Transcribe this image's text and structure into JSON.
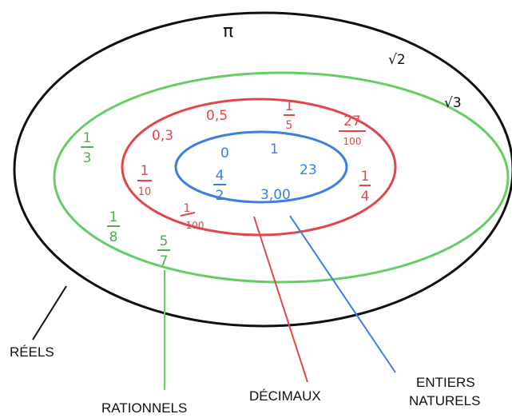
{
  "colors": {
    "reels": "#111111",
    "rationnels": "#66cc66",
    "decimaux": "#e0474c",
    "entiers": "#3b7fe0"
  },
  "labels": {
    "reels": "RÉELS",
    "rationnels": "RATIONNELS",
    "decimaux": "DÉCIMAUX",
    "entiers_line1": "ENTIERS",
    "entiers_line2": "NATURELS"
  },
  "reels": {
    "pi": "π",
    "sqrt2": "√2",
    "sqrt3": "√3"
  },
  "rationnels": {
    "f1": {
      "num": "1",
      "den": "3"
    },
    "f2": {
      "num": "1",
      "den": "8"
    },
    "f3": {
      "num": "5",
      "den": "7"
    }
  },
  "decimaux": {
    "v1": "0,3",
    "v2": "0,5",
    "f1": {
      "num": "1",
      "den": "5"
    },
    "f2": {
      "num": "27",
      "den": "100"
    },
    "f3": {
      "num": "1",
      "den": "10"
    },
    "f4": {
      "num": "1",
      "den": "100"
    },
    "f5": {
      "num": "1",
      "den": "4"
    }
  },
  "entiers": {
    "v1": "0",
    "v2": "1",
    "v3": "23",
    "v4": "3,00",
    "f1": {
      "num": "4",
      "den": "2"
    }
  }
}
